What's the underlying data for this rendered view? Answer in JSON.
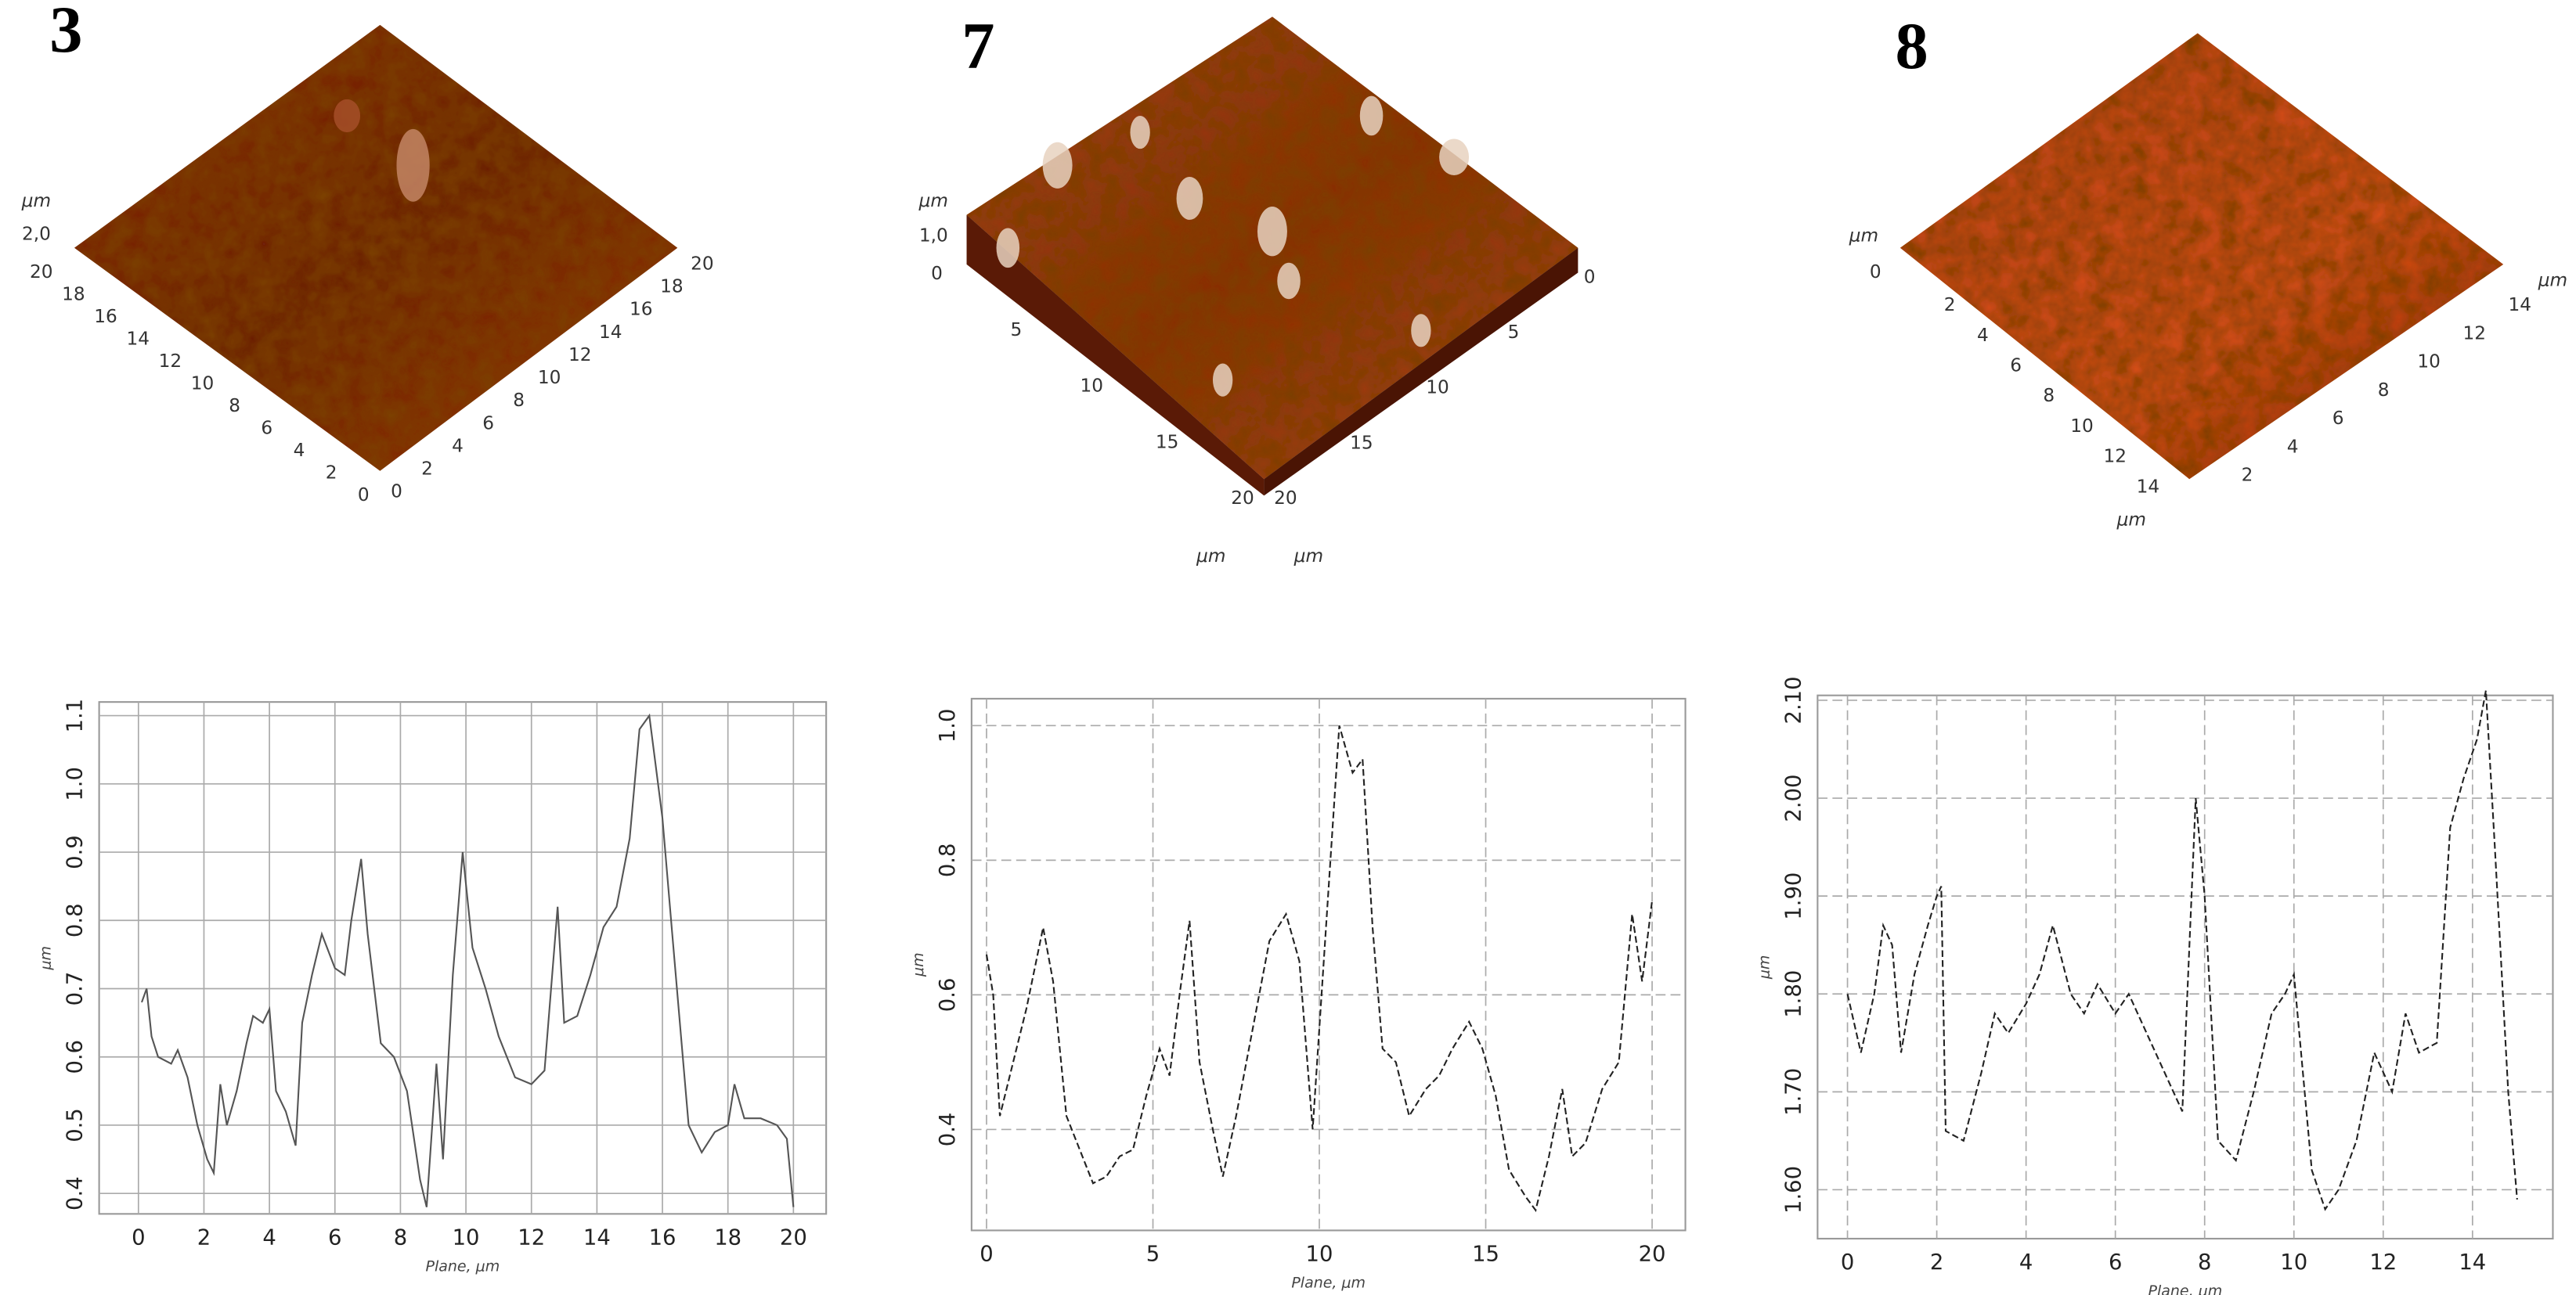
{
  "panels": [
    {
      "label": "3",
      "z_unit": "μm",
      "z_ticks": [
        "2,0"
      ],
      "left_ticks": [
        20,
        18,
        16,
        14,
        12,
        10,
        8,
        6,
        4,
        2,
        0
      ],
      "right_ticks": [
        0,
        2,
        4,
        6,
        8,
        10,
        12,
        14,
        16,
        18,
        20
      ]
    },
    {
      "label": "7",
      "z_unit": "μm",
      "z_ticks": [
        "1,0",
        0
      ],
      "left_ticks": [
        5,
        10,
        15,
        20
      ],
      "right_ticks": [
        20,
        15,
        10,
        5,
        0
      ],
      "units": [
        "μm",
        "μm"
      ]
    },
    {
      "label": "8",
      "z_unit": "μm",
      "z_ticks": [
        0
      ],
      "left_ticks": [
        2,
        4,
        6,
        8,
        10,
        12,
        14
      ],
      "right_ticks": [
        2,
        4,
        6,
        8,
        10,
        12,
        14
      ],
      "units": [
        "μm",
        "μm"
      ]
    }
  ],
  "chart_data": [
    {
      "type": "line",
      "xlabel": "Plane, μm",
      "ylabel": "μm",
      "color": "#555555",
      "line_style": "solid",
      "grid": true,
      "xlim": [
        -1.2,
        21
      ],
      "ylim": [
        0.37,
        1.12
      ],
      "xticks": [
        0,
        2,
        4,
        6,
        8,
        10,
        12,
        14,
        16,
        18,
        20
      ],
      "yticks": [
        0.4,
        0.5,
        0.6,
        0.7,
        0.8,
        0.9,
        {
          "value": 1,
          "label": "1.0"
        },
        1.1
      ],
      "x": [
        0.1,
        0.25,
        0.4,
        0.6,
        1.0,
        1.2,
        1.5,
        1.8,
        2.1,
        2.3,
        2.5,
        2.7,
        3.0,
        3.3,
        3.5,
        3.8,
        4.0,
        4.2,
        4.5,
        4.8,
        5.0,
        5.3,
        5.6,
        6.0,
        6.3,
        6.5,
        6.8,
        7.0,
        7.4,
        7.8,
        8.2,
        8.6,
        8.8,
        9.1,
        9.3,
        9.6,
        9.9,
        10.2,
        10.6,
        11.0,
        11.5,
        12.0,
        12.4,
        12.8,
        13.0,
        13.4,
        13.8,
        14.2,
        14.6,
        15.0,
        15.3,
        15.6,
        16.0,
        16.3,
        16.8,
        17.2,
        17.6,
        18.0,
        18.2,
        18.5,
        19.0,
        19.5,
        19.8,
        20.0
      ],
      "values": [
        0.68,
        0.7,
        0.63,
        0.6,
        0.59,
        0.61,
        0.57,
        0.5,
        0.45,
        0.43,
        0.56,
        0.5,
        0.55,
        0.62,
        0.66,
        0.65,
        0.67,
        0.55,
        0.52,
        0.47,
        0.65,
        0.72,
        0.78,
        0.73,
        0.72,
        0.8,
        0.89,
        0.78,
        0.62,
        0.6,
        0.55,
        0.42,
        0.38,
        0.59,
        0.45,
        0.72,
        0.9,
        0.76,
        0.7,
        0.63,
        0.57,
        0.56,
        0.58,
        0.82,
        0.65,
        0.66,
        0.72,
        0.79,
        0.82,
        0.92,
        1.08,
        1.1,
        0.95,
        0.78,
        0.5,
        0.46,
        0.49,
        0.5,
        0.56,
        0.51,
        0.51,
        0.5,
        0.48,
        0.38
      ]
    },
    {
      "type": "line",
      "xlabel": "Plane, μm",
      "ylabel": "μm",
      "color": "#222222",
      "line_style": "dashed",
      "grid": true,
      "xlim": [
        -0.45,
        21
      ],
      "ylim": [
        0.25,
        1.04
      ],
      "xticks": [
        0,
        5,
        10,
        15,
        20
      ],
      "yticks": [
        0.4,
        0.6,
        0.8,
        {
          "value": 1,
          "label": "1.0"
        }
      ],
      "x": [
        0,
        0.2,
        0.4,
        0.8,
        1.2,
        1.7,
        2.0,
        2.4,
        2.8,
        3.2,
        3.6,
        4.0,
        4.4,
        4.8,
        5.2,
        5.5,
        5.8,
        6.1,
        6.4,
        6.8,
        7.1,
        7.5,
        8.0,
        8.5,
        9.0,
        9.4,
        9.8,
        10.2,
        10.6,
        11.0,
        11.3,
        11.6,
        11.9,
        12.3,
        12.7,
        13.2,
        13.6,
        14.0,
        14.5,
        14.9,
        15.3,
        15.7,
        16.2,
        16.5,
        16.9,
        17.3,
        17.6,
        18.0,
        18.5,
        19.0,
        19.4,
        19.7,
        20.0
      ],
      "values": [
        0.66,
        0.6,
        0.42,
        0.5,
        0.58,
        0.7,
        0.62,
        0.42,
        0.37,
        0.32,
        0.33,
        0.36,
        0.37,
        0.45,
        0.52,
        0.48,
        0.6,
        0.71,
        0.5,
        0.4,
        0.33,
        0.42,
        0.55,
        0.68,
        0.72,
        0.65,
        0.4,
        0.7,
        1.0,
        0.93,
        0.95,
        0.7,
        0.52,
        0.5,
        0.42,
        0.46,
        0.48,
        0.52,
        0.56,
        0.52,
        0.45,
        0.34,
        0.3,
        0.28,
        0.36,
        0.46,
        0.36,
        0.38,
        0.46,
        0.5,
        0.72,
        0.62,
        0.74
      ]
    },
    {
      "type": "line",
      "xlabel": "Plane, μm",
      "ylabel": "μm",
      "color": "#222222",
      "line_style": "dashed",
      "grid": true,
      "xlim": [
        -0.67,
        15.8
      ],
      "ylim": [
        1.55,
        2.105
      ],
      "xticks": [
        0,
        2,
        4,
        6,
        8,
        10,
        12,
        14
      ],
      "yticks": [
        {
          "value": 1.6,
          "label": "1.60"
        },
        {
          "value": 1.7,
          "label": "1.70"
        },
        {
          "value": 1.8,
          "label": "1.80"
        },
        {
          "value": 1.9,
          "label": "1.90"
        },
        {
          "value": 2,
          "label": "2.00"
        },
        {
          "value": 2.1,
          "label": "2.10"
        }
      ],
      "x": [
        0,
        0.3,
        0.6,
        0.8,
        1.0,
        1.2,
        1.5,
        1.8,
        2.0,
        2.1,
        2.2,
        2.6,
        3.0,
        3.3,
        3.6,
        4.0,
        4.3,
        4.6,
        5.0,
        5.3,
        5.6,
        6.0,
        6.3,
        6.7,
        7.1,
        7.5,
        7.8,
        8.0,
        8.3,
        8.7,
        9.1,
        9.5,
        9.8,
        10.0,
        10.4,
        10.7,
        11.0,
        11.4,
        11.8,
        12.2,
        12.5,
        12.8,
        13.2,
        13.5,
        13.8,
        14.1,
        14.3,
        14.5,
        14.8,
        15.0
      ],
      "values": [
        1.8,
        1.74,
        1.8,
        1.87,
        1.85,
        1.74,
        1.82,
        1.87,
        1.9,
        1.91,
        1.66,
        1.65,
        1.72,
        1.78,
        1.76,
        1.79,
        1.82,
        1.87,
        1.8,
        1.78,
        1.81,
        1.78,
        1.8,
        1.76,
        1.72,
        1.68,
        2.0,
        1.9,
        1.65,
        1.63,
        1.7,
        1.78,
        1.8,
        1.82,
        1.62,
        1.58,
        1.6,
        1.65,
        1.74,
        1.7,
        1.78,
        1.74,
        1.75,
        1.97,
        2.02,
        2.06,
        2.11,
        1.95,
        1.7,
        1.59
      ]
    }
  ]
}
